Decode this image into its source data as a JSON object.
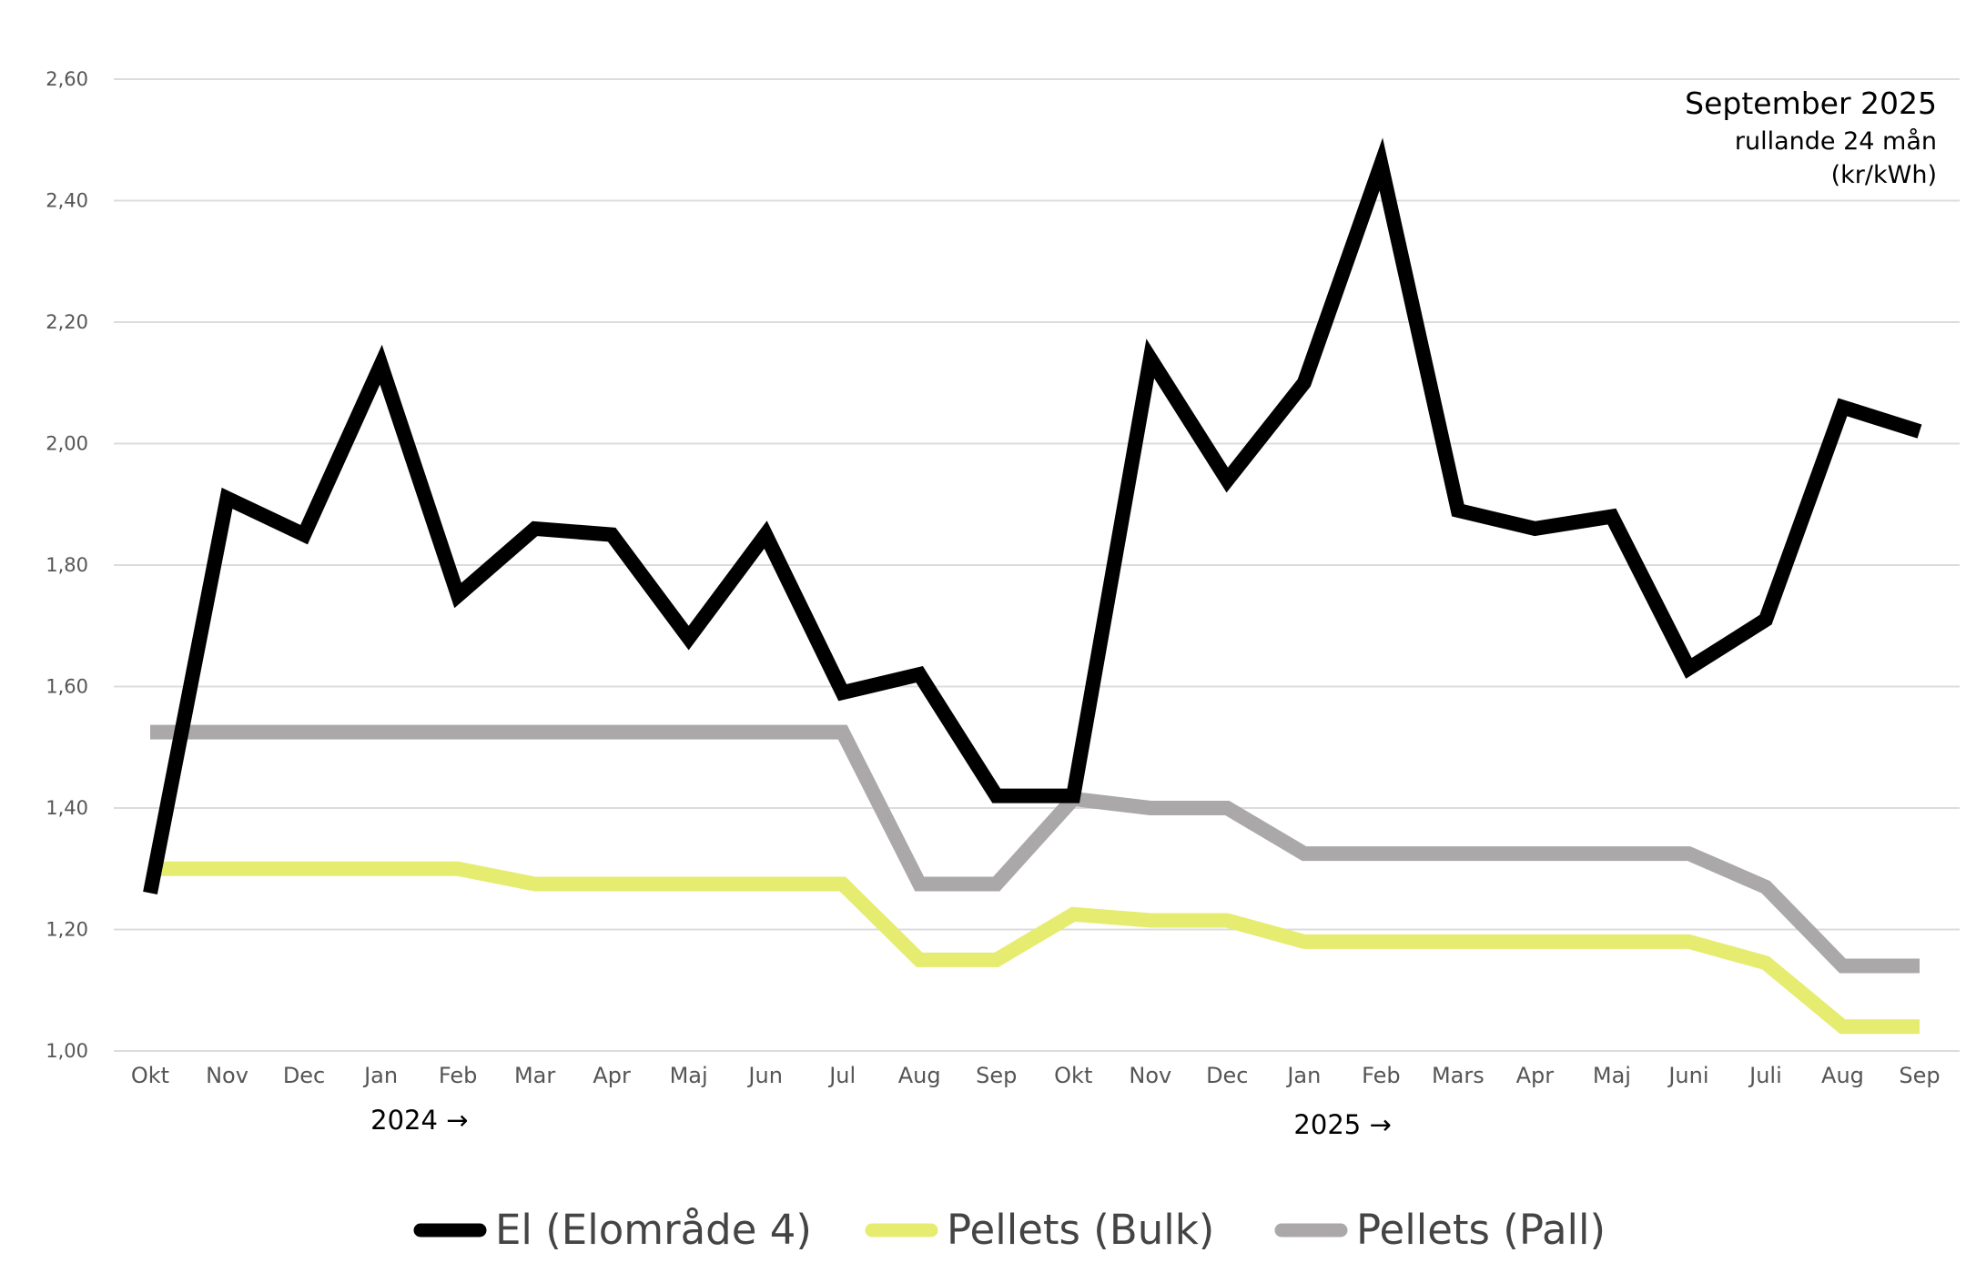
{
  "chart_data": {
    "type": "line",
    "title": "September 2025",
    "subtitle": "rullande 24 mån",
    "unit": "(kr/kWh)",
    "categories": [
      "Okt",
      "Nov",
      "Dec",
      "Jan",
      "Feb",
      "Mar",
      "Apr",
      "Maj",
      "Jun",
      "Jul",
      "Aug",
      "Sep",
      "Okt",
      "Nov",
      "Dec",
      "Jan",
      "Feb",
      "Mars",
      "Apr",
      "Maj",
      "Juni",
      "Juli",
      "Aug",
      "Sep"
    ],
    "year_labels": [
      {
        "label": "2024 →",
        "at_index": 3.5
      },
      {
        "label": "2025 →",
        "at_index": 15.5
      }
    ],
    "ylim": [
      1.0,
      2.6
    ],
    "yticks": [
      "1,00",
      "1,20",
      "1,40",
      "1,60",
      "1,80",
      "2,00",
      "2,20",
      "2,40",
      "2,60"
    ],
    "ytick_values": [
      1.0,
      1.2,
      1.4,
      1.6,
      1.8,
      2.0,
      2.2,
      2.4,
      2.6
    ],
    "grid": true,
    "legend_position": "bottom",
    "series": [
      {
        "name": "El (Elområde 4)",
        "color": "#000000",
        "values": [
          1.26,
          1.91,
          1.85,
          2.13,
          1.75,
          1.86,
          1.85,
          1.68,
          1.85,
          1.59,
          1.62,
          1.42,
          1.42,
          2.14,
          1.94,
          2.1,
          2.46,
          1.89,
          1.86,
          1.88,
          1.63,
          1.71,
          2.06,
          2.02
        ]
      },
      {
        "name": "Pellets (Bulk)",
        "color": "#e6ec6f",
        "values": [
          1.3,
          1.3,
          1.3,
          1.3,
          1.3,
          1.275,
          1.275,
          1.275,
          1.275,
          1.275,
          1.15,
          1.15,
          1.225,
          1.215,
          1.215,
          1.18,
          1.18,
          1.18,
          1.18,
          1.18,
          1.18,
          1.145,
          1.04,
          1.04
        ]
      },
      {
        "name": "Pellets (Pall)",
        "color": "#aaa8a8",
        "values": [
          1.525,
          1.525,
          1.525,
          1.525,
          1.525,
          1.525,
          1.525,
          1.525,
          1.525,
          1.525,
          1.275,
          1.275,
          1.415,
          1.4,
          1.4,
          1.325,
          1.325,
          1.325,
          1.325,
          1.325,
          1.325,
          1.27,
          1.14,
          1.14
        ]
      }
    ]
  }
}
